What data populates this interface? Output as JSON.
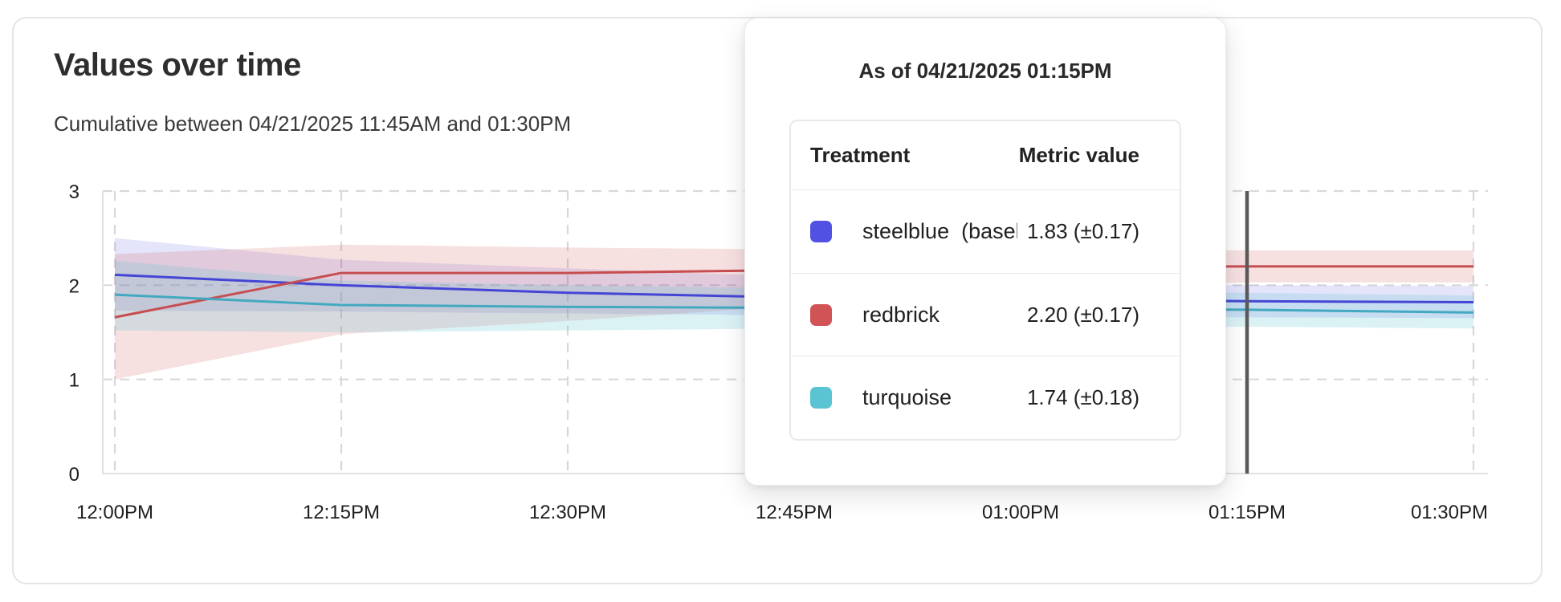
{
  "card": {
    "title": "Values over time",
    "subtitle": "Cumulative between 04/21/2025 11:45AM and 01:30PM"
  },
  "chart_data": {
    "type": "line",
    "title": "Values over time",
    "x_labels": [
      "12:00PM",
      "12:15PM",
      "12:30PM",
      "12:45PM",
      "01:00PM",
      "01:15PM",
      "01:30PM"
    ],
    "y_ticks": [
      "0",
      "1",
      "2",
      "3"
    ],
    "ylim": [
      0,
      3
    ],
    "grid": "dashed",
    "grid_color": "#d8d8da",
    "axis_color": "#e1e1e3",
    "crosshair": {
      "x_label": "01:15PM",
      "color": "#5a5a5a"
    },
    "series": [
      {
        "name": "steelblue (baseline)",
        "color": "#4545d4",
        "band_color": "rgba(95,95,226,0.17)",
        "values": [
          2.11,
          2.0,
          1.92,
          1.87,
          1.85,
          1.83,
          1.82
        ],
        "band_upper": [
          2.5,
          2.27,
          2.18,
          2.09,
          2.03,
          2.0,
          1.99
        ],
        "band_lower": [
          1.73,
          1.72,
          1.7,
          1.68,
          1.67,
          1.66,
          1.65
        ]
      },
      {
        "name": "redbrick",
        "color": "#c74e50",
        "band_color": "rgba(208,83,85,0.18)",
        "values": [
          1.66,
          2.13,
          2.13,
          2.16,
          2.19,
          2.2,
          2.2
        ],
        "band_upper": [
          2.33,
          2.43,
          2.4,
          2.38,
          2.37,
          2.37,
          2.37
        ],
        "band_lower": [
          1.0,
          1.48,
          1.62,
          1.78,
          1.94,
          2.03,
          2.03
        ]
      },
      {
        "name": "turquoise",
        "color": "#43a9c0",
        "band_color": "rgba(90,196,211,0.22)",
        "values": [
          1.9,
          1.79,
          1.77,
          1.76,
          1.75,
          1.74,
          1.71
        ],
        "band_upper": [
          2.26,
          2.05,
          2.0,
          1.97,
          1.94,
          1.92,
          1.89
        ],
        "band_lower": [
          1.52,
          1.5,
          1.52,
          1.54,
          1.55,
          1.56,
          1.54
        ]
      }
    ]
  },
  "tooltip": {
    "header": "As of 04/21/2025 01:15PM",
    "columns": [
      "Treatment",
      "Metric value"
    ],
    "rows": [
      {
        "swatch": "#5152e2",
        "label": "steelblue  (baseli",
        "value": "1.83 (±0.17)"
      },
      {
        "swatch": "#d05355",
        "label": "redbrick",
        "value": "2.20 (±0.17)"
      },
      {
        "swatch": "#5ac4d3",
        "label": "turquoise",
        "value": "1.74 (±0.18)"
      }
    ]
  }
}
